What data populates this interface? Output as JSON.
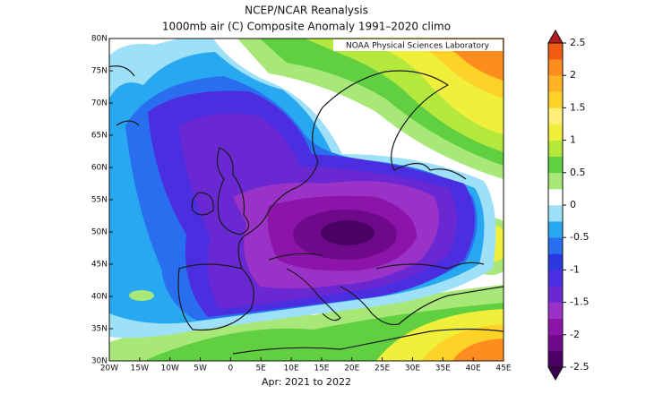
{
  "header": {
    "title": "NCEP/NCAR Reanalysis",
    "subtitle": "1000mb air (C) Composite Anomaly 1991–2020 climo"
  },
  "map": {
    "credit": "NOAA Physical Sciences Laboratory",
    "x_labels": [
      "20W",
      "15W",
      "10W",
      "5W",
      "0",
      "5E",
      "10E",
      "15E",
      "20E",
      "25E",
      "30E",
      "35E",
      "40E",
      "45E"
    ],
    "y_labels": [
      "80N",
      "75N",
      "70N",
      "65N",
      "60N",
      "55N",
      "50N",
      "45N",
      "40N",
      "35N",
      "30N"
    ],
    "caption": "Apr: 2021 to 2022"
  },
  "colorbar": {
    "lim": [
      -2.5,
      2.5
    ],
    "ticks": [
      2.5,
      2,
      1.5,
      1,
      0.5,
      0,
      -0.5,
      -1,
      -1.5,
      -2,
      -2.5
    ],
    "colors": [
      "#4b0064",
      "#6e0a8a",
      "#8c14a8",
      "#9a32c8",
      "#6a28d2",
      "#4a2ee0",
      "#2a3ae0",
      "#2a6ef0",
      "#28a8f0",
      "#9ee0f8",
      "#ffffff",
      "#a8e878",
      "#60d040",
      "#b4e83c",
      "#f0f03c",
      "#fff078",
      "#ffd228",
      "#ffb428",
      "#ff8c1e",
      "#f05a14"
    ]
  }
}
